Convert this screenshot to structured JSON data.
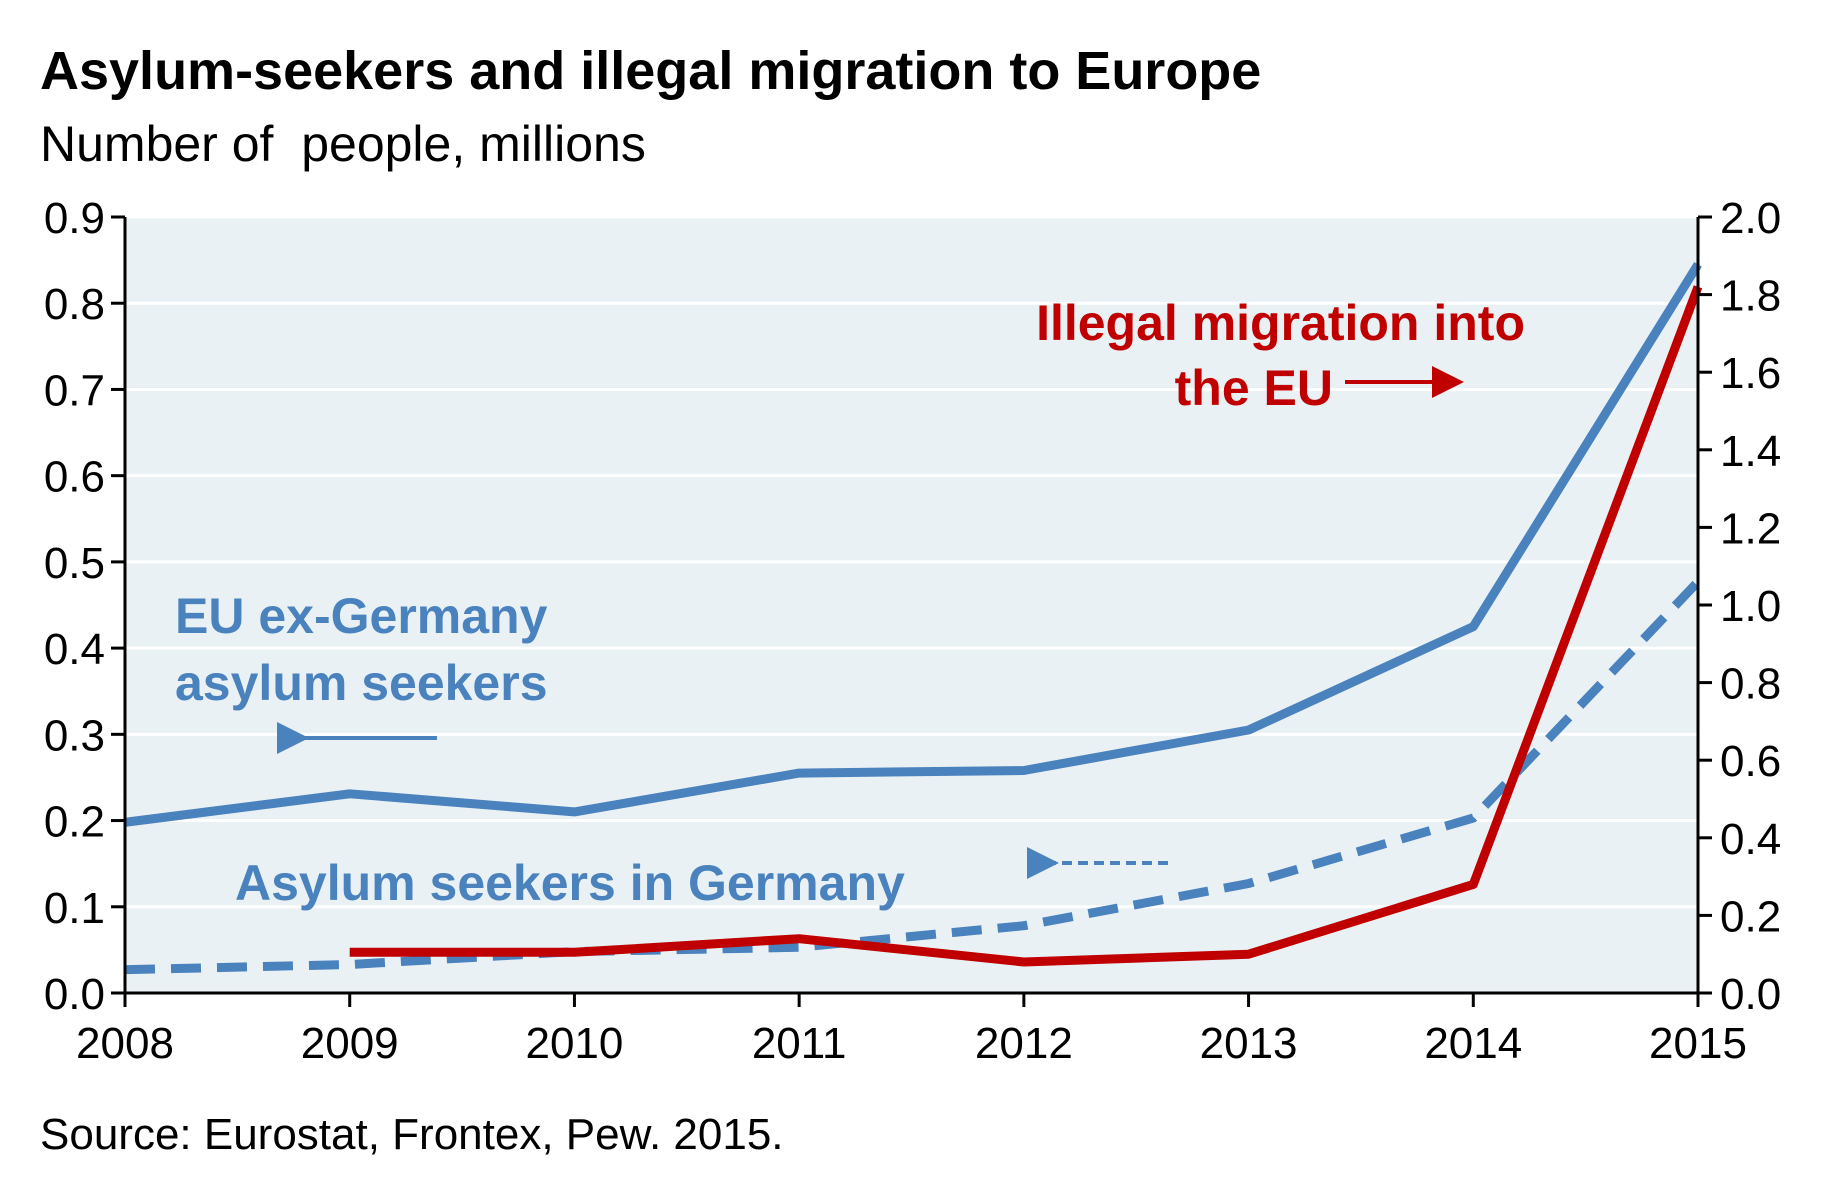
{
  "title": "Asylum-seekers and illegal migration to Europe",
  "subtitle": "Number of  people, millions",
  "source": "Source: Eurostat, Frontex, Pew. 2015.",
  "colors": {
    "blue": "#4a82bd",
    "red": "#c00000",
    "plot_bg": "#eaf1f5",
    "grid": "#ffffff"
  },
  "chart_data": {
    "type": "line",
    "x": [
      2008,
      2009,
      2010,
      2011,
      2012,
      2013,
      2014,
      2015
    ],
    "x_tick_labels": [
      "2008",
      "2009",
      "2010",
      "2011",
      "2012",
      "2013",
      "2014",
      "2015"
    ],
    "y_left": {
      "min": 0,
      "max": 0.9,
      "ticks": [
        "0.0",
        "0.1",
        "0.2",
        "0.3",
        "0.4",
        "0.5",
        "0.6",
        "0.7",
        "0.8",
        "0.9"
      ]
    },
    "y_right": {
      "min": 0,
      "max": 2.0,
      "ticks": [
        "0.0",
        "0.2",
        "0.4",
        "0.6",
        "0.8",
        "1.0",
        "1.2",
        "1.4",
        "1.6",
        "1.8",
        "2.0"
      ]
    },
    "grid": true,
    "series": [
      {
        "name": "EU ex-Germany asylum seekers",
        "axis": "left",
        "style": "solid",
        "color": "#4a82bd",
        "x": [
          2008,
          2009,
          2010,
          2011,
          2012,
          2013,
          2014,
          2015
        ],
        "values": [
          0.198,
          0.231,
          0.21,
          0.255,
          0.258,
          0.305,
          0.425,
          0.845
        ]
      },
      {
        "name": "Asylum seekers in Germany",
        "axis": "left",
        "style": "dashed",
        "color": "#4a82bd",
        "x": [
          2008,
          2009,
          2010,
          2011,
          2012,
          2013,
          2014,
          2015
        ],
        "values": [
          0.027,
          0.033,
          0.048,
          0.053,
          0.078,
          0.127,
          0.203,
          0.477
        ]
      },
      {
        "name": "Illegal migration into the EU",
        "axis": "right",
        "style": "solid",
        "color": "#c00000",
        "x": [
          2009,
          2010,
          2011,
          2012,
          2013,
          2014,
          2015
        ],
        "values": [
          0.105,
          0.105,
          0.14,
          0.08,
          0.1,
          0.28,
          1.82
        ]
      }
    ],
    "annotations": {
      "eu_ex_germany": [
        "EU ex-Germany",
        "asylum seekers"
      ],
      "germany": [
        "Asylum seekers in Germany"
      ],
      "illegal": [
        "Illegal migration into",
        "the EU"
      ]
    }
  }
}
